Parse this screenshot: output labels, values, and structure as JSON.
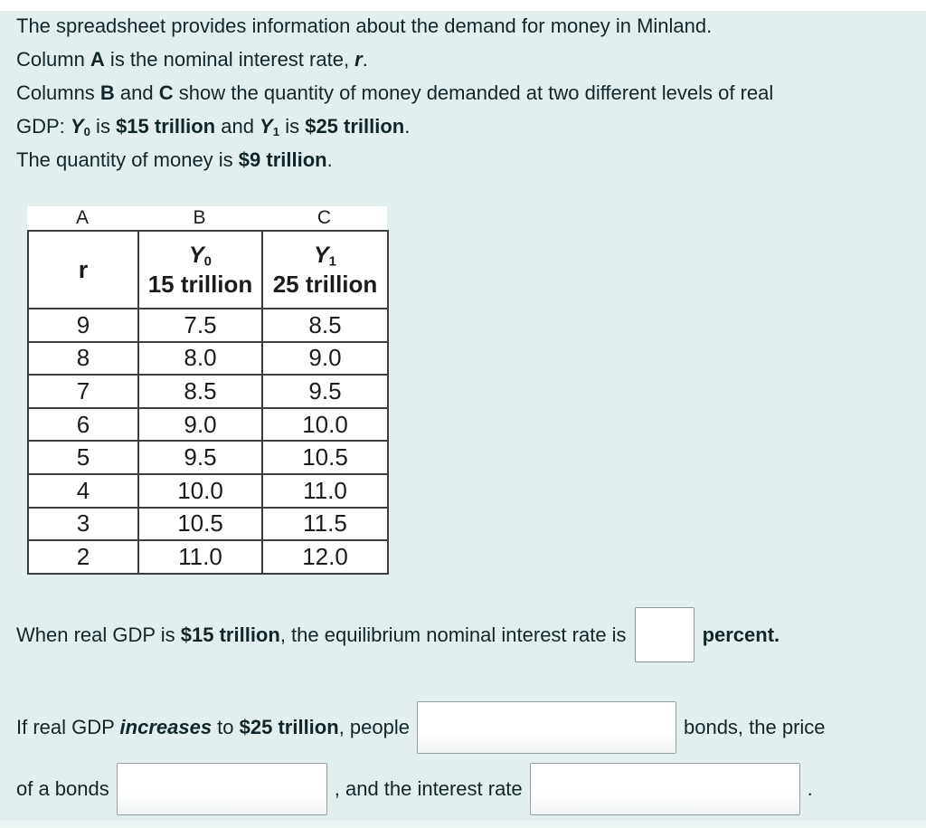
{
  "page": {
    "background": "#e3efee",
    "top_strip_color": "#ffffff",
    "text_color": "#11262a",
    "table_border_color": "#3d3d3d",
    "blank_border_color": "#9aa2a6"
  },
  "intro": {
    "lines": [
      {
        "segments": [
          {
            "t": "The spreadsheet provides information about the demand for money in Minland."
          }
        ]
      },
      {
        "segments": [
          {
            "t": "Column "
          },
          {
            "t": "A",
            "b": true
          },
          {
            "t": " is the nominal interest rate, "
          },
          {
            "t": "r",
            "b": true,
            "i": true
          },
          {
            "t": "."
          }
        ]
      },
      {
        "segments": [
          {
            "t": "Columns "
          },
          {
            "t": "B",
            "b": true
          },
          {
            "t": " and "
          },
          {
            "t": "C",
            "b": true
          },
          {
            "t": " show the quantity of money demanded at two different levels of real"
          }
        ]
      },
      {
        "segments": [
          {
            "t": "GDP: "
          },
          {
            "t": "Y",
            "b": true,
            "i": true
          },
          {
            "t": "0",
            "b": true,
            "sub": true
          },
          {
            "t": " is "
          },
          {
            "t": "$15 trillion",
            "b": true
          },
          {
            "t": " and "
          },
          {
            "t": "Y",
            "b": true,
            "i": true
          },
          {
            "t": "1",
            "b": true,
            "sub": true
          },
          {
            "t": " is "
          },
          {
            "t": "$25 trillion",
            "b": true
          },
          {
            "t": "."
          }
        ]
      },
      {
        "segments": [
          {
            "t": "The quantity of money is "
          },
          {
            "t": "$9 trillion",
            "b": true
          },
          {
            "t": "."
          }
        ]
      }
    ]
  },
  "spreadsheet": {
    "column_letters": [
      "A",
      "B",
      "C"
    ],
    "header": {
      "col_a": "r",
      "col_b": {
        "symbol": [
          {
            "t": "Y",
            "b": true,
            "i": true
          },
          {
            "t": "0",
            "b": true,
            "sub": true
          }
        ],
        "label": "15 trillion"
      },
      "col_c": {
        "symbol": [
          {
            "t": "Y",
            "b": true,
            "i": true
          },
          {
            "t": "1",
            "b": true,
            "sub": true
          }
        ],
        "label": "25 trillion"
      }
    },
    "rows": [
      [
        "9",
        "7.5",
        "8.5"
      ],
      [
        "8",
        "8.0",
        "9.0"
      ],
      [
        "7",
        "8.5",
        "9.5"
      ],
      [
        "6",
        "9.0",
        "10.0"
      ],
      [
        "5",
        "9.5",
        "10.5"
      ],
      [
        "4",
        "10.0",
        "11.0"
      ],
      [
        "3",
        "10.5",
        "11.5"
      ],
      [
        "2",
        "11.0",
        "12.0"
      ]
    ]
  },
  "questions": {
    "q1": {
      "before": [
        {
          "t": "When real GDP is "
        },
        {
          "t": "$15 trillion",
          "b": true
        },
        {
          "t": ", the equilibrium nominal interest rate is"
        }
      ],
      "after": [
        {
          "t": "percent.",
          "b": true
        }
      ],
      "input_value": ""
    },
    "q2": {
      "line1_before": [
        {
          "t": "If real GDP "
        },
        {
          "t": "increases",
          "b": true,
          "i": true
        },
        {
          "t": " to "
        },
        {
          "t": "$25 trillion",
          "b": true
        },
        {
          "t": ", people"
        }
      ],
      "line1_after": [
        {
          "t": "bonds, the price"
        }
      ],
      "line2_before": [
        {
          "t": "of a bonds"
        }
      ],
      "line2_mid": [
        {
          "t": ", and the interest rate"
        }
      ],
      "line2_after": [
        {
          "t": "."
        }
      ]
    }
  }
}
